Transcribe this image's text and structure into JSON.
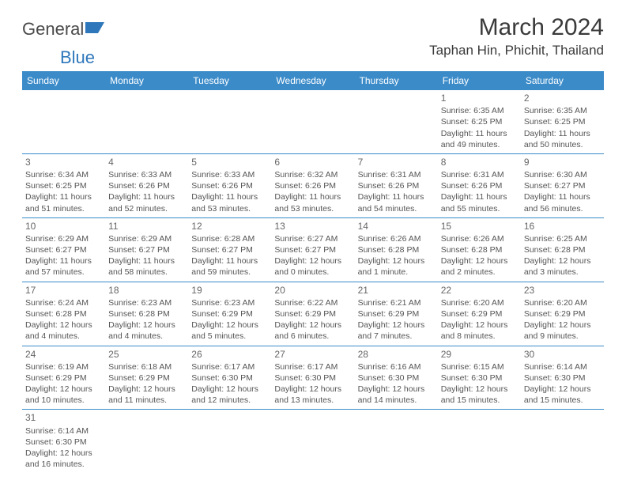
{
  "logo": {
    "text1": "General",
    "text2": "Blue"
  },
  "title": "March 2024",
  "location": "Taphan Hin, Phichit, Thailand",
  "colors": {
    "header_bg": "#3b8bc9",
    "header_fg": "#ffffff",
    "border": "#3b8bc9",
    "text": "#555555",
    "title": "#3a3a3a"
  },
  "day_headers": [
    "Sunday",
    "Monday",
    "Tuesday",
    "Wednesday",
    "Thursday",
    "Friday",
    "Saturday"
  ],
  "weeks": [
    [
      null,
      null,
      null,
      null,
      null,
      {
        "n": "1",
        "sr": "6:35 AM",
        "ss": "6:25 PM",
        "dl": "11 hours and 49 minutes."
      },
      {
        "n": "2",
        "sr": "6:35 AM",
        "ss": "6:25 PM",
        "dl": "11 hours and 50 minutes."
      }
    ],
    [
      {
        "n": "3",
        "sr": "6:34 AM",
        "ss": "6:25 PM",
        "dl": "11 hours and 51 minutes."
      },
      {
        "n": "4",
        "sr": "6:33 AM",
        "ss": "6:26 PM",
        "dl": "11 hours and 52 minutes."
      },
      {
        "n": "5",
        "sr": "6:33 AM",
        "ss": "6:26 PM",
        "dl": "11 hours and 53 minutes."
      },
      {
        "n": "6",
        "sr": "6:32 AM",
        "ss": "6:26 PM",
        "dl": "11 hours and 53 minutes."
      },
      {
        "n": "7",
        "sr": "6:31 AM",
        "ss": "6:26 PM",
        "dl": "11 hours and 54 minutes."
      },
      {
        "n": "8",
        "sr": "6:31 AM",
        "ss": "6:26 PM",
        "dl": "11 hours and 55 minutes."
      },
      {
        "n": "9",
        "sr": "6:30 AM",
        "ss": "6:27 PM",
        "dl": "11 hours and 56 minutes."
      }
    ],
    [
      {
        "n": "10",
        "sr": "6:29 AM",
        "ss": "6:27 PM",
        "dl": "11 hours and 57 minutes."
      },
      {
        "n": "11",
        "sr": "6:29 AM",
        "ss": "6:27 PM",
        "dl": "11 hours and 58 minutes."
      },
      {
        "n": "12",
        "sr": "6:28 AM",
        "ss": "6:27 PM",
        "dl": "11 hours and 59 minutes."
      },
      {
        "n": "13",
        "sr": "6:27 AM",
        "ss": "6:27 PM",
        "dl": "12 hours and 0 minutes."
      },
      {
        "n": "14",
        "sr": "6:26 AM",
        "ss": "6:28 PM",
        "dl": "12 hours and 1 minute."
      },
      {
        "n": "15",
        "sr": "6:26 AM",
        "ss": "6:28 PM",
        "dl": "12 hours and 2 minutes."
      },
      {
        "n": "16",
        "sr": "6:25 AM",
        "ss": "6:28 PM",
        "dl": "12 hours and 3 minutes."
      }
    ],
    [
      {
        "n": "17",
        "sr": "6:24 AM",
        "ss": "6:28 PM",
        "dl": "12 hours and 4 minutes."
      },
      {
        "n": "18",
        "sr": "6:23 AM",
        "ss": "6:28 PM",
        "dl": "12 hours and 4 minutes."
      },
      {
        "n": "19",
        "sr": "6:23 AM",
        "ss": "6:29 PM",
        "dl": "12 hours and 5 minutes."
      },
      {
        "n": "20",
        "sr": "6:22 AM",
        "ss": "6:29 PM",
        "dl": "12 hours and 6 minutes."
      },
      {
        "n": "21",
        "sr": "6:21 AM",
        "ss": "6:29 PM",
        "dl": "12 hours and 7 minutes."
      },
      {
        "n": "22",
        "sr": "6:20 AM",
        "ss": "6:29 PM",
        "dl": "12 hours and 8 minutes."
      },
      {
        "n": "23",
        "sr": "6:20 AM",
        "ss": "6:29 PM",
        "dl": "12 hours and 9 minutes."
      }
    ],
    [
      {
        "n": "24",
        "sr": "6:19 AM",
        "ss": "6:29 PM",
        "dl": "12 hours and 10 minutes."
      },
      {
        "n": "25",
        "sr": "6:18 AM",
        "ss": "6:29 PM",
        "dl": "12 hours and 11 minutes."
      },
      {
        "n": "26",
        "sr": "6:17 AM",
        "ss": "6:30 PM",
        "dl": "12 hours and 12 minutes."
      },
      {
        "n": "27",
        "sr": "6:17 AM",
        "ss": "6:30 PM",
        "dl": "12 hours and 13 minutes."
      },
      {
        "n": "28",
        "sr": "6:16 AM",
        "ss": "6:30 PM",
        "dl": "12 hours and 14 minutes."
      },
      {
        "n": "29",
        "sr": "6:15 AM",
        "ss": "6:30 PM",
        "dl": "12 hours and 15 minutes."
      },
      {
        "n": "30",
        "sr": "6:14 AM",
        "ss": "6:30 PM",
        "dl": "12 hours and 15 minutes."
      }
    ],
    [
      {
        "n": "31",
        "sr": "6:14 AM",
        "ss": "6:30 PM",
        "dl": "12 hours and 16 minutes."
      },
      null,
      null,
      null,
      null,
      null,
      null
    ]
  ],
  "labels": {
    "sunrise": "Sunrise: ",
    "sunset": "Sunset: ",
    "daylight": "Daylight: "
  }
}
